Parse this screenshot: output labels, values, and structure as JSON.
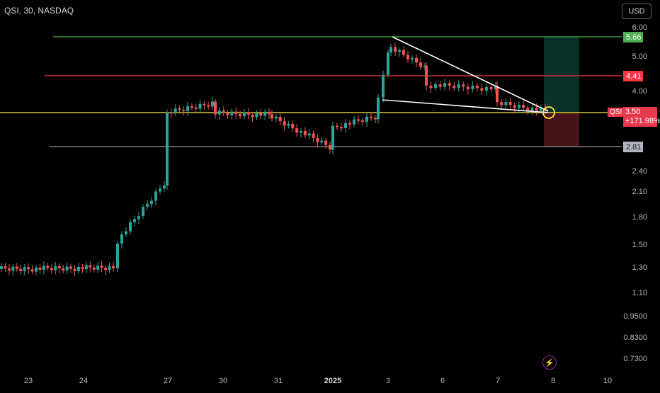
{
  "header": {
    "title": "QSI, 30, NASDAQ",
    "currency_button": "USD"
  },
  "y_ticks": [
    "6.00",
    "5.00",
    "4.00",
    "2.40",
    "2.10",
    "1.80",
    "1.50",
    "1.30",
    "1.10",
    "0.9500",
    "0.8300",
    "0.7300"
  ],
  "x_ticks": [
    "23",
    "24",
    "27",
    "30",
    "31",
    "2025",
    "3",
    "6",
    "7",
    "8",
    "10"
  ],
  "levels": [
    {
      "label": "5.66",
      "color": "#4caf50"
    },
    {
      "label": "4.41",
      "color": "#f23645"
    },
    {
      "label": "2.81",
      "color": "#787b86"
    }
  ],
  "current": {
    "symbol": "QSI",
    "price": "3.50",
    "change": "+171.98%",
    "color": "#e8384b"
  },
  "colors": {
    "up": "#26a69a",
    "down": "#ef5350",
    "current_line": "#ffeb3b",
    "wedge": "#ffffff"
  },
  "icons": {
    "alert": "lightning-icon"
  }
}
